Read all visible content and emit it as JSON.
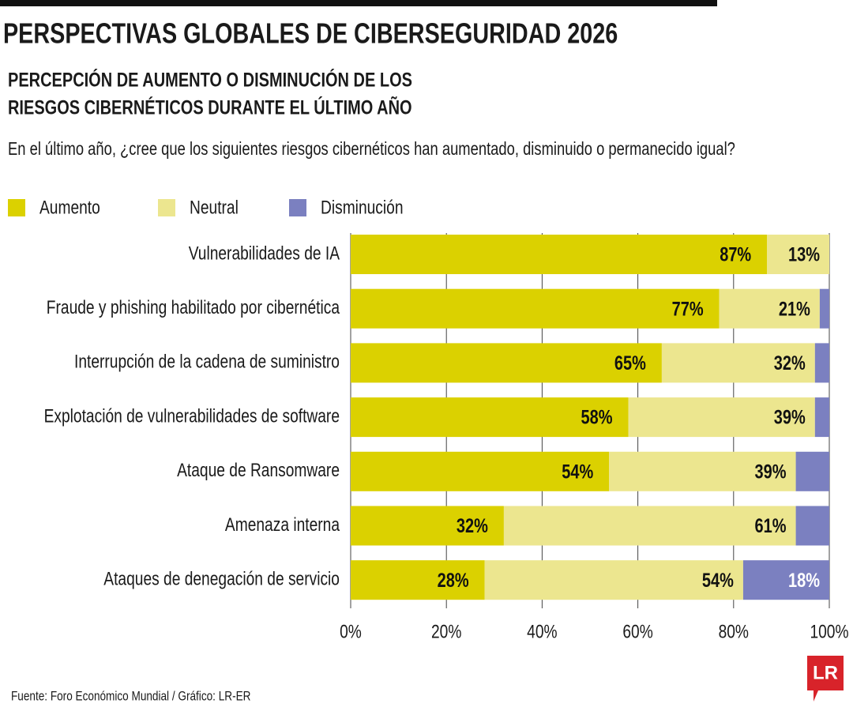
{
  "chart_data": {
    "type": "stacked-bar-horizontal",
    "title": "PERSPECTIVAS GLOBALES DE CIBERSEGURIDAD 2026",
    "subtitle": [
      "PERCEPCIÓN DE AUMENTO O DISMINUCIÓN DE LOS",
      "RIESGOS CIBERNÉTICOS DURANTE EL ÚLTIMO AÑO"
    ],
    "question": "En el último año, ¿cree que los siguientes riesgos cibernéticos han aumentado, disminuido o permanecido igual?",
    "categories": [
      "Vulnerabilidades de IA",
      "Fraude y phishing habilitado por cibernética",
      "Interrupción de la cadena de suministro",
      "Explotación de vulnerabilidades de software",
      "Ataque de Ransomware",
      "Amenaza interna",
      "Ataques de denegación de servicio"
    ],
    "series": [
      {
        "name": "Aumento",
        "color": "#dbd100",
        "values": [
          87,
          77,
          65,
          58,
          54,
          32,
          28
        ],
        "value_labels": [
          "87%",
          "77%",
          "65%",
          "58%",
          "54%",
          "32%",
          "28%"
        ]
      },
      {
        "name": "Neutral",
        "color": "#ece68f",
        "values": [
          13,
          21,
          32,
          39,
          39,
          61,
          54
        ],
        "value_labels": [
          "13%",
          "21%",
          "32%",
          "39%",
          "39%",
          "61%",
          "54%"
        ]
      },
      {
        "name": "Disminución",
        "color": "#7b80c0",
        "values": [
          0,
          2,
          3,
          3,
          7,
          7,
          18
        ],
        "value_labels": [
          null,
          null,
          null,
          null,
          null,
          null,
          "18%"
        ]
      }
    ],
    "xlim": [
      0,
      100
    ],
    "xticks": [
      {
        "value": 0,
        "label": "0%"
      },
      {
        "value": 20,
        "label": "20%"
      },
      {
        "value": 40,
        "label": "40%"
      },
      {
        "value": 60,
        "label": "60%"
      },
      {
        "value": 80,
        "label": "80%"
      },
      {
        "value": 100,
        "label": "100%"
      }
    ],
    "grid": true,
    "source": "Fuente: Foro Económico Mundial / Gráfico: LR-ER",
    "logo": "LR"
  }
}
